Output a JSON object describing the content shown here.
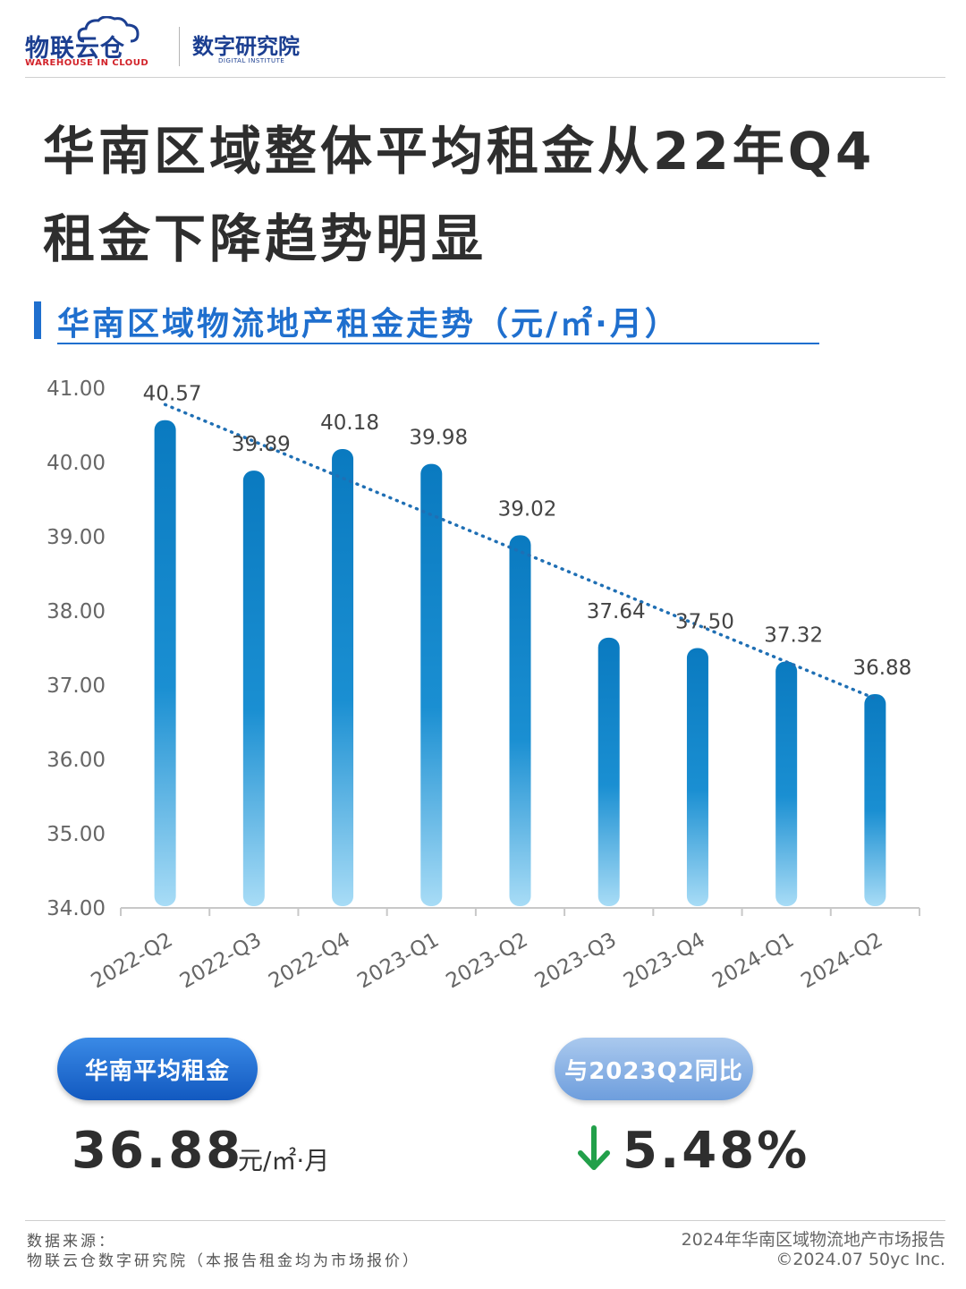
{
  "brand": {
    "logo_name": "物联云仓",
    "logo_tagline": "WAREHOUSE IN CLOUD",
    "institute_name": "数字研究院",
    "institute_tagline": "DIGITAL INSTITUTE",
    "logo_color": "#1c3f91",
    "tagline_color": "#d2232a"
  },
  "title_lines": [
    "华南区域整体平均租金从22年Q4",
    "租金下降趋势明显"
  ],
  "subtitle": "华南区域物流地产租金走势（元/㎡·月）",
  "chart_data": {
    "type": "bar",
    "categories": [
      "2022-Q2",
      "2022-Q3",
      "2022-Q4",
      "2023-Q1",
      "2023-Q2",
      "2023-Q3",
      "2023-Q4",
      "2024-Q1",
      "2024-Q2"
    ],
    "values": [
      40.57,
      39.89,
      40.18,
      39.98,
      39.02,
      37.64,
      37.5,
      37.32,
      36.88
    ],
    "value_labels": [
      "40.57",
      "39.89",
      "40.18",
      "39.98",
      "39.02",
      "37.64",
      "37.50",
      "37.32",
      "36.88"
    ],
    "ylim": [
      34,
      41
    ],
    "yticks": [
      "34.00",
      "35.00",
      "36.00",
      "37.00",
      "38.00",
      "39.00",
      "40.00",
      "41.00"
    ],
    "trendline": {
      "style": "dotted",
      "start": 40.78,
      "end": 36.82
    },
    "grid": false,
    "bar_color": "#0a7ac0"
  },
  "stats": {
    "avg_label": "华南平均租金",
    "avg_value": "36.88",
    "avg_unit": "元/㎡·月",
    "yoy_label": "与2023Q2同比",
    "yoy_value": "5.48%",
    "yoy_direction": "down",
    "down_color": "#22a04a"
  },
  "footer": {
    "source_label": "数据来源：",
    "source_text": "物联云仓数字研究院（本报告租金均为市场报价）",
    "report_name": "2024年华南区域物流地产市场报告",
    "copyright": "©2024.07 50yc Inc."
  }
}
